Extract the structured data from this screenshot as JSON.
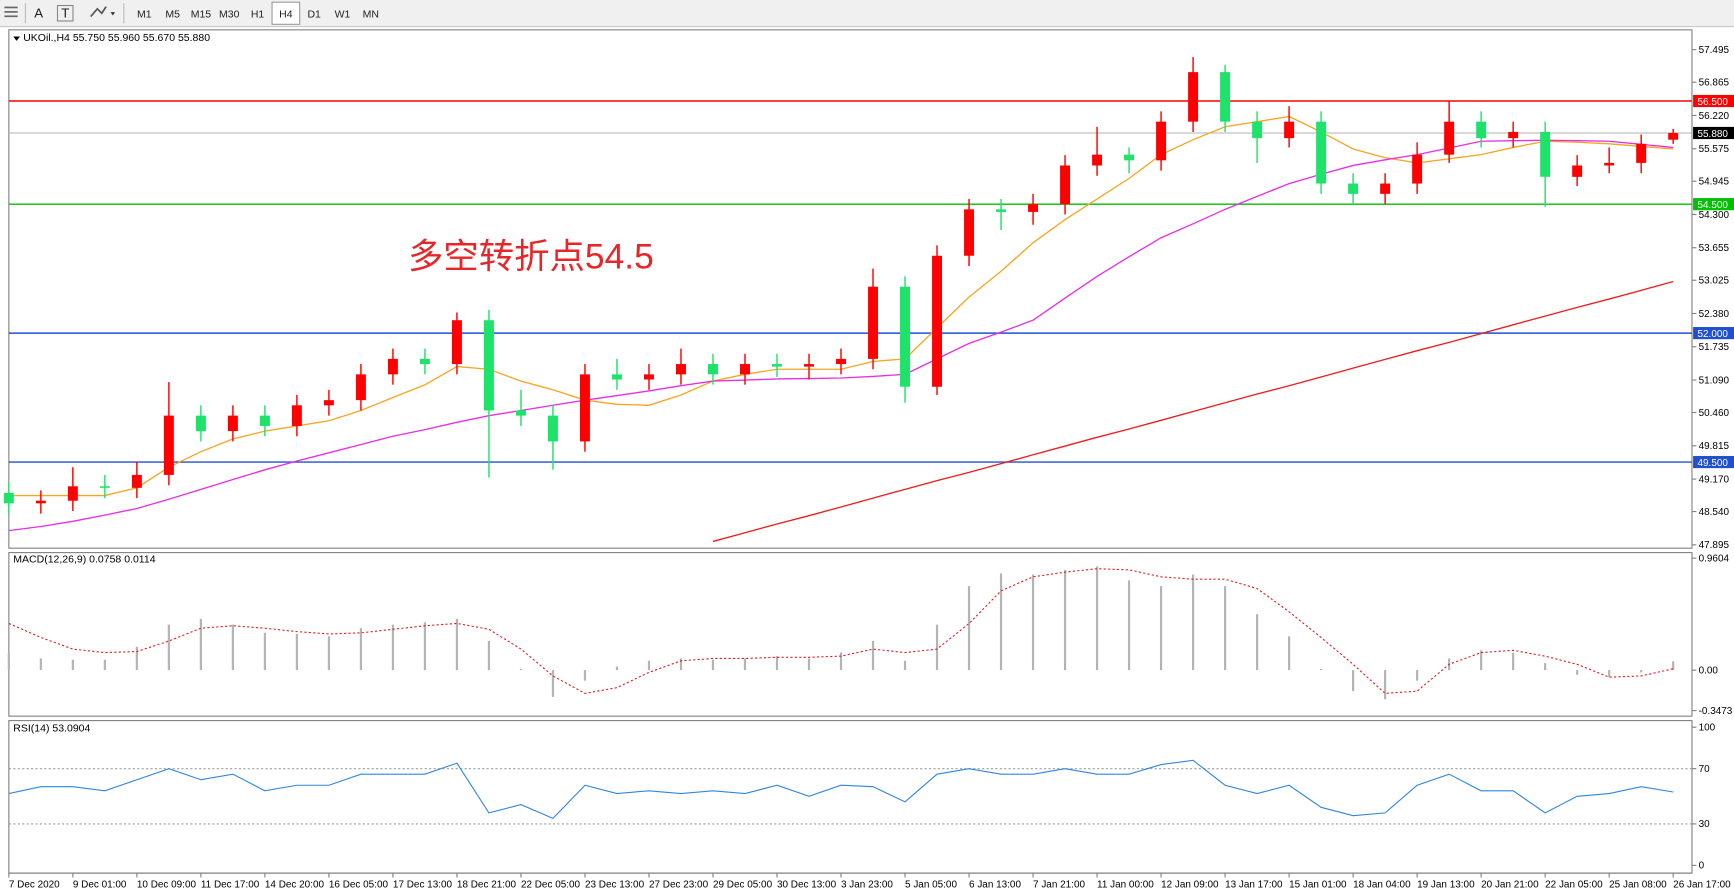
{
  "toolbar": {
    "tools": [
      "A",
      "T"
    ],
    "timeframes": [
      "M1",
      "M5",
      "M15",
      "M30",
      "H1",
      "H4",
      "D1",
      "W1",
      "MN"
    ],
    "active": "H4"
  },
  "chart_data": [
    {
      "type": "candlestick",
      "title": "UKOil.,H4  55.750 55.960 55.670 55.880",
      "annotation": "多空转折点54.5",
      "categories": [
        "7 Dec 2020",
        null,
        "9 Dec 01:00",
        null,
        "10 Dec 09:00",
        null,
        "11 Dec 17:00",
        null,
        "14 Dec 20:00",
        null,
        "16 Dec 05:00",
        null,
        "17 Dec 13:00",
        null,
        "18 Dec 21:00",
        null,
        "22 Dec 05:00",
        null,
        "23 Dec 13:00",
        null,
        "27 Dec 23:00",
        null,
        "29 Dec 05:00",
        null,
        "30 Dec 13:00",
        null,
        "3 Jan 23:00",
        null,
        "5 Jan 05:00",
        null,
        "6 Jan 13:00",
        null,
        "7 Jan 21:00",
        null,
        "11 Jan 00:00",
        null,
        "12 Jan 09:00",
        null,
        "13 Jan 17:00",
        null,
        "15 Jan 01:00",
        null,
        "18 Jan 04:00",
        null,
        "19 Jan 13:00",
        null,
        "20 Jan 21:00",
        null,
        "22 Jan 05:00",
        null,
        "25 Jan 08:00",
        null,
        "26 Jan 17:00"
      ],
      "open": [
        48.9,
        48.7,
        48.75,
        49.03,
        49.0,
        49.25,
        50.4,
        50.1,
        50.4,
        50.2,
        50.6,
        50.7,
        51.2,
        51.5,
        51.4,
        52.25,
        50.5,
        50.4,
        49.9,
        51.2,
        51.1,
        51.2,
        51.4,
        51.2,
        51.4,
        51.35,
        51.4,
        51.5,
        52.9,
        50.96,
        53.5,
        54.4,
        54.35,
        54.5,
        55.25,
        55.46,
        55.35,
        56.1,
        57.06,
        56.1,
        55.78,
        56.1,
        54.9,
        54.7,
        54.9,
        55.46,
        56.1,
        55.78,
        55.9,
        55.03,
        55.25,
        55.3,
        55.75
      ],
      "high": [
        49.1,
        48.95,
        49.4,
        49.25,
        49.5,
        51.05,
        50.6,
        50.6,
        50.6,
        50.8,
        50.9,
        51.4,
        51.7,
        51.7,
        52.4,
        52.45,
        50.9,
        50.6,
        51.4,
        51.5,
        51.4,
        51.7,
        51.6,
        51.6,
        51.6,
        51.6,
        51.7,
        53.25,
        53.1,
        53.7,
        54.6,
        54.6,
        54.7,
        55.45,
        56.0,
        55.6,
        56.3,
        57.35,
        57.2,
        56.3,
        56.4,
        56.3,
        55.1,
        55.1,
        55.7,
        56.5,
        56.3,
        56.1,
        56.1,
        55.45,
        55.6,
        55.85,
        55.96
      ],
      "low": [
        48.5,
        48.5,
        48.55,
        48.8,
        48.8,
        49.05,
        49.9,
        49.9,
        50.0,
        50.0,
        50.4,
        50.5,
        51.0,
        51.2,
        51.2,
        49.2,
        50.2,
        49.35,
        49.7,
        50.9,
        50.9,
        51.0,
        51.0,
        51.0,
        51.15,
        51.1,
        51.2,
        51.3,
        50.65,
        50.8,
        53.3,
        54.0,
        54.1,
        54.3,
        55.05,
        55.1,
        55.15,
        55.9,
        55.9,
        55.3,
        55.6,
        54.7,
        54.5,
        54.5,
        54.7,
        55.3,
        55.6,
        55.6,
        54.45,
        54.85,
        55.1,
        55.1,
        55.67
      ],
      "close": [
        48.7,
        48.75,
        49.03,
        49.0,
        49.25,
        50.4,
        50.1,
        50.4,
        50.2,
        50.6,
        50.7,
        51.2,
        51.5,
        51.4,
        52.25,
        50.5,
        50.4,
        49.9,
        51.2,
        51.1,
        51.2,
        51.4,
        51.2,
        51.4,
        51.35,
        51.4,
        51.5,
        52.9,
        50.96,
        53.5,
        54.4,
        54.35,
        54.5,
        55.25,
        55.46,
        55.35,
        56.1,
        57.06,
        56.1,
        55.78,
        56.1,
        54.9,
        54.7,
        54.9,
        55.46,
        56.1,
        55.78,
        55.9,
        55.03,
        55.25,
        55.3,
        55.67,
        55.88
      ],
      "up_color": "#ff0000",
      "down_color": "#1ee36b",
      "lines": [
        {
          "color": "#f5a623",
          "values": [
            48.85,
            48.85,
            48.85,
            48.85,
            49.0,
            49.4,
            49.7,
            49.95,
            50.1,
            50.2,
            50.3,
            50.5,
            50.75,
            51.0,
            51.35,
            51.3,
            51.07,
            50.9,
            50.7,
            50.62,
            50.6,
            50.8,
            51.07,
            51.2,
            51.3,
            51.3,
            51.3,
            51.45,
            51.5,
            52.1,
            52.7,
            53.2,
            53.75,
            54.2,
            54.6,
            55.0,
            55.46,
            55.75,
            56.0,
            56.1,
            56.2,
            55.9,
            55.57,
            55.4,
            55.3,
            55.38,
            55.46,
            55.6,
            55.72,
            55.7,
            55.67,
            55.62,
            55.57
          ]
        },
        {
          "color": "#e62ee6",
          "values": [
            48.17,
            48.25,
            48.35,
            48.47,
            48.6,
            48.78,
            48.97,
            49.16,
            49.35,
            49.52,
            49.68,
            49.84,
            50.0,
            50.13,
            50.27,
            50.4,
            50.5,
            50.6,
            50.7,
            50.79,
            50.88,
            50.98,
            51.07,
            51.09,
            51.11,
            51.12,
            51.13,
            51.16,
            51.2,
            51.5,
            51.8,
            52.02,
            52.25,
            52.68,
            53.1,
            53.48,
            53.85,
            54.12,
            54.4,
            54.65,
            54.9,
            55.08,
            55.25,
            55.36,
            55.46,
            55.59,
            55.72,
            55.73,
            55.74,
            55.73,
            55.72,
            55.66,
            55.6
          ]
        },
        {
          "color": "#ee1c1c",
          "values": [
            null,
            null,
            null,
            null,
            null,
            null,
            null,
            null,
            null,
            null,
            null,
            null,
            null,
            null,
            null,
            null,
            null,
            null,
            null,
            null,
            null,
            null,
            47.96,
            48.13,
            48.3,
            48.46,
            48.63,
            48.8,
            48.97,
            49.14,
            49.3,
            49.47,
            49.64,
            49.81,
            49.98,
            50.14,
            50.31,
            50.48,
            50.65,
            50.82,
            50.98,
            51.15,
            51.32,
            51.49,
            51.66,
            51.82,
            51.99,
            52.16,
            52.33,
            52.5,
            52.66,
            52.83,
            53.0
          ]
        }
      ],
      "levels": [
        {
          "value": 56.5,
          "label": "56.500",
          "color": "#ff0000"
        },
        {
          "value": 54.5,
          "label": "54.500",
          "color": "#00c000"
        },
        {
          "value": 52.0,
          "label": "52.000",
          "color": "#2050d0"
        },
        {
          "value": 49.5,
          "label": "49.500",
          "color": "#2050d0"
        }
      ],
      "last_price": {
        "value": 55.88,
        "label": "55.880"
      },
      "ylim": [
        47.83,
        57.88
      ],
      "yticks": [
        57.495,
        56.865,
        {
          "value": 56.22,
          "label": "56.220"
        },
        55.575,
        54.945,
        {
          "value": 54.3,
          "label": "54.300"
        },
        53.655,
        53.025,
        {
          "value": 52.38,
          "label": "52.380"
        },
        51.735,
        {
          "value": 51.09,
          "label": "51.090"
        },
        {
          "value": 50.46,
          "label": "50.460"
        },
        49.815,
        {
          "value": 49.17,
          "label": "49.170"
        },
        {
          "value": 48.54,
          "label": "48.540"
        },
        47.895
      ]
    },
    {
      "type": "macd",
      "title": "MACD(12,26,9) 0.0758 0.0114",
      "hist_color": "#b4b4b4",
      "signal_color": "#e02020",
      "values": [
        0.15,
        0.1,
        0.09,
        0.09,
        0.2,
        0.39,
        0.44,
        0.39,
        0.32,
        0.31,
        0.29,
        0.36,
        0.39,
        0.41,
        0.44,
        0.25,
        0.01,
        -0.23,
        -0.09,
        0.03,
        0.08,
        0.1,
        0.09,
        0.1,
        0.12,
        0.1,
        0.15,
        0.25,
        0.08,
        0.39,
        0.72,
        0.83,
        0.82,
        0.86,
        0.89,
        0.77,
        0.72,
        0.82,
        0.72,
        0.48,
        0.29,
        0.01,
        -0.18,
        -0.25,
        -0.09,
        0.1,
        0.17,
        0.15,
        0.06,
        -0.04,
        -0.06,
        -0.02,
        0.0758
      ],
      "signal": [
        0.4,
        0.28,
        0.18,
        0.15,
        0.16,
        0.25,
        0.36,
        0.38,
        0.36,
        0.33,
        0.31,
        0.32,
        0.35,
        0.38,
        0.4,
        0.35,
        0.18,
        -0.05,
        -0.2,
        -0.15,
        -0.02,
        0.08,
        0.1,
        0.1,
        0.11,
        0.11,
        0.12,
        0.18,
        0.15,
        0.18,
        0.4,
        0.68,
        0.8,
        0.84,
        0.87,
        0.86,
        0.8,
        0.78,
        0.78,
        0.7,
        0.5,
        0.28,
        0.05,
        -0.2,
        -0.18,
        0.05,
        0.15,
        0.17,
        0.12,
        0.05,
        -0.06,
        -0.05,
        0.0114
      ],
      "ylim": [
        -0.395,
        1.008
      ],
      "yticks": [
        0.9604,
        {
          "value": 0,
          "label": "0.00"
        },
        -0.3473
      ]
    },
    {
      "type": "rsi",
      "title": "RSI(14) 53.0904",
      "color": "#2f86e0",
      "values": [
        52,
        57,
        57,
        54,
        62,
        70,
        62,
        66,
        54,
        58,
        58,
        66,
        66,
        66,
        74,
        38,
        44,
        34,
        58,
        52,
        54,
        52,
        54,
        52,
        58,
        50,
        58,
        57,
        46,
        66,
        70,
        66,
        66,
        70,
        66,
        66,
        73,
        76,
        58,
        52,
        58,
        42,
        36,
        38,
        58,
        66,
        54,
        54,
        38,
        50,
        52,
        57,
        53.0904
      ],
      "levels": [
        70,
        30
      ],
      "ylim": [
        -5.6,
        104.8
      ],
      "yticks": [
        100,
        70,
        30,
        0
      ]
    }
  ]
}
